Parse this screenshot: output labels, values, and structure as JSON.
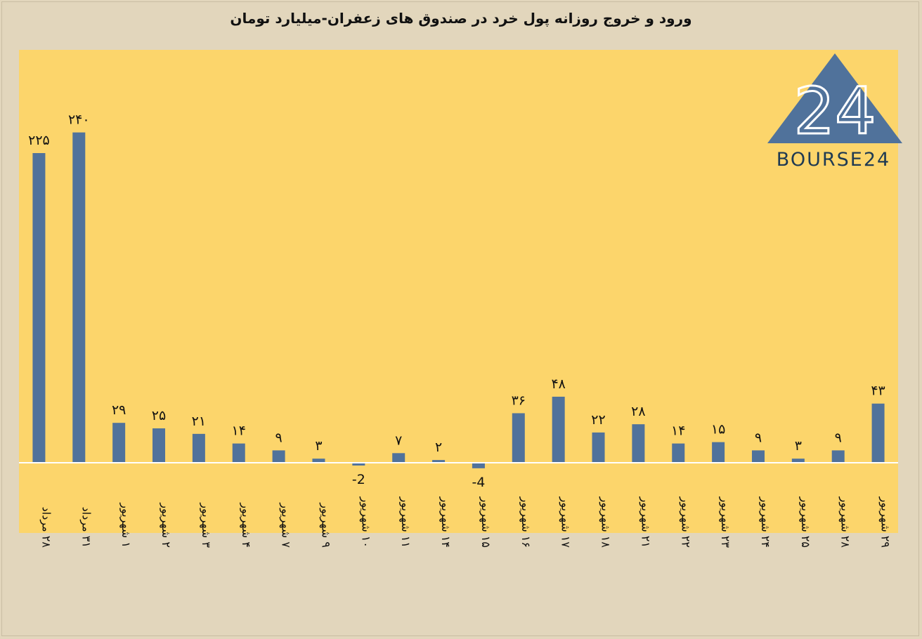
{
  "chart_data": {
    "type": "bar",
    "title": "ورود و خروج روزانه پول خرد در صندوق های زعفران-میلیارد تومان",
    "categories": [
      "۲۸ مرداد",
      "۳۱ مرداد",
      "۱ شهریور",
      "۲ شهریور",
      "۳ شهریور",
      "۴ شهریور",
      "۷ شهریور",
      "۹ شهریور",
      "۱۰ شهریور",
      "۱۱ شهریور",
      "۱۴ شهریور",
      "۱۵ شهریور",
      "۱۶ شهریور",
      "۱۷ شهریور",
      "۱۸ شهریور",
      "۲۱ شهریور",
      "۲۲ شهریور",
      "۲۳ شهریور",
      "۲۴ شهریور",
      "۲۵ شهریور",
      "۲۸ شهریور",
      "۲۹ شهریور"
    ],
    "values": [
      225,
      240,
      29,
      25,
      21,
      14,
      9,
      3,
      -2,
      7,
      2,
      -4,
      36,
      48,
      22,
      28,
      14,
      15,
      9,
      3,
      9,
      43
    ],
    "data_labels": [
      "۲۲۵",
      "۲۴۰",
      "۲۹",
      "۲۵",
      "۲۱",
      "۱۴",
      "۹",
      "۳",
      "-2",
      "۷",
      "۲",
      "-4",
      "۳۶",
      "۴۸",
      "۲۲",
      "۲۸",
      "۱۴",
      "۱۵",
      "۹",
      "۳",
      "۹",
      "۴۳"
    ],
    "ylim": [
      -51,
      300
    ],
    "grid": false,
    "colors": {
      "bar": "#50729b",
      "plot_bg": "#fcd56b",
      "page_bg": "#e2d6bc",
      "zero_line": "#ffffff",
      "logo": "#50729b"
    }
  },
  "logo": {
    "text": "BOURSE24",
    "mark": "24"
  }
}
